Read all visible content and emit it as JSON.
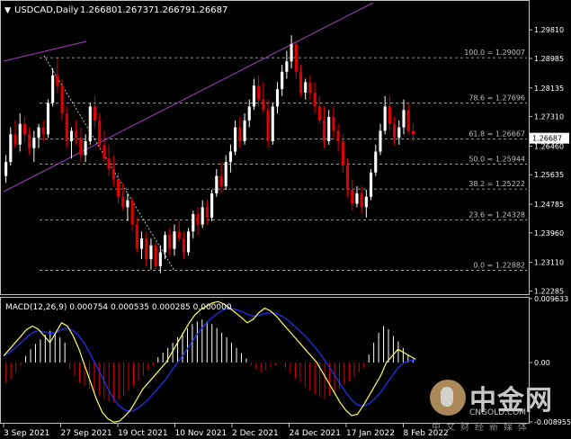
{
  "header": {
    "symbol": "USDCAD,Daily",
    "open": "1.26680",
    "high": "1.26737",
    "low": "1.26679",
    "close": "1.26687"
  },
  "price_axis": {
    "ticks": [
      "1.29810",
      "1.28985",
      "1.28135",
      "1.27310",
      "1.26460",
      "1.25635",
      "1.24785",
      "1.23960",
      "1.23110",
      "1.22285"
    ],
    "current_price": "1.26687"
  },
  "fibonacci_levels": [
    {
      "label": "100.0 = 1.29007",
      "value": 1.29007
    },
    {
      "label": "78.6 = 1.27696",
      "value": 1.27696
    },
    {
      "label": "61.8 = 1.26667",
      "value": 1.26667
    },
    {
      "label": "50.0 = 1.25944",
      "value": 1.25944
    },
    {
      "label": "38.2 = 1.25222",
      "value": 1.25222
    },
    {
      "label": "23.6 = 1.24328",
      "value": 1.24328
    },
    {
      "label": "0.0 = 1.22882",
      "value": 1.22882
    }
  ],
  "macd": {
    "label": "MACD(12,26,9) 0.000754 0.000535 0.000285 0.000000",
    "ticks": [
      "0.009633",
      "0.00",
      "-0.008955"
    ]
  },
  "time_axis": [
    "3 Sep 2021",
    "27 Sep 2021",
    "19 Oct 2021",
    "10 Nov 2021",
    "2 Dec 2021",
    "24 Dec 2021",
    "17 Jan 2022",
    "8 Feb 2022"
  ],
  "colors": {
    "background": "#000000",
    "bull_candle": "#ffffff",
    "bear_candle": "#e00000",
    "grid": "#c0c0c0",
    "trendline": "#a040c0",
    "macd_line": "#ffff66",
    "signal_line": "#2233ff",
    "price_marker_bg": "#ffffff"
  },
  "watermark": {
    "brand": "中金网",
    "url": "CNGOLD.COM",
    "slogan": "中文财经新媒体",
    "icon": "cngold-logo-icon"
  },
  "chart_data": {
    "type": "candlestick",
    "title": "USDCAD,Daily",
    "ylim": [
      1.2222,
      1.3015
    ],
    "candles": [
      [
        1.256,
        1.262,
        1.254,
        1.26
      ],
      [
        1.26,
        1.27,
        1.259,
        1.268
      ],
      [
        1.268,
        1.272,
        1.264,
        1.265
      ],
      [
        1.265,
        1.274,
        1.263,
        1.271
      ],
      [
        1.271,
        1.273,
        1.266,
        1.268
      ],
      [
        1.268,
        1.27,
        1.262,
        1.264
      ],
      [
        1.264,
        1.269,
        1.26,
        1.267
      ],
      [
        1.267,
        1.271,
        1.264,
        1.27
      ],
      [
        1.27,
        1.272,
        1.266,
        1.268
      ],
      [
        1.268,
        1.278,
        1.267,
        1.277
      ],
      [
        1.277,
        1.287,
        1.276,
        1.285
      ],
      [
        1.285,
        1.29,
        1.28,
        1.282
      ],
      [
        1.282,
        1.284,
        1.272,
        1.274
      ],
      [
        1.274,
        1.276,
        1.264,
        1.266
      ],
      [
        1.266,
        1.27,
        1.261,
        1.269
      ],
      [
        1.269,
        1.272,
        1.265,
        1.267
      ],
      [
        1.267,
        1.27,
        1.26,
        1.262
      ],
      [
        1.262,
        1.268,
        1.26,
        1.266
      ],
      [
        1.266,
        1.277,
        1.265,
        1.276
      ],
      [
        1.276,
        1.279,
        1.27,
        1.272
      ],
      [
        1.272,
        1.274,
        1.264,
        1.265
      ],
      [
        1.265,
        1.269,
        1.26,
        1.261
      ],
      [
        1.261,
        1.265,
        1.256,
        1.258
      ],
      [
        1.258,
        1.262,
        1.253,
        1.255
      ],
      [
        1.255,
        1.257,
        1.248,
        1.25
      ],
      [
        1.25,
        1.254,
        1.246,
        1.247
      ],
      [
        1.247,
        1.251,
        1.243,
        1.249
      ],
      [
        1.249,
        1.25,
        1.24,
        1.242
      ],
      [
        1.242,
        1.244,
        1.234,
        1.235
      ],
      [
        1.235,
        1.24,
        1.232,
        1.238
      ],
      [
        1.238,
        1.24,
        1.23,
        1.232
      ],
      [
        1.232,
        1.238,
        1.229,
        1.236
      ],
      [
        1.236,
        1.237,
        1.229,
        1.23
      ],
      [
        1.23,
        1.236,
        1.228,
        1.234
      ],
      [
        1.234,
        1.24,
        1.232,
        1.239
      ],
      [
        1.239,
        1.241,
        1.233,
        1.235
      ],
      [
        1.235,
        1.242,
        1.233,
        1.24
      ],
      [
        1.24,
        1.243,
        1.237,
        1.238
      ],
      [
        1.238,
        1.24,
        1.232,
        1.234
      ],
      [
        1.234,
        1.241,
        1.233,
        1.24
      ],
      [
        1.24,
        1.246,
        1.238,
        1.245
      ],
      [
        1.245,
        1.247,
        1.239,
        1.242
      ],
      [
        1.242,
        1.249,
        1.241,
        1.247
      ],
      [
        1.247,
        1.249,
        1.242,
        1.244
      ],
      [
        1.244,
        1.252,
        1.243,
        1.251
      ],
      [
        1.251,
        1.258,
        1.25,
        1.256
      ],
      [
        1.256,
        1.26,
        1.251,
        1.253
      ],
      [
        1.253,
        1.262,
        1.252,
        1.26
      ],
      [
        1.26,
        1.265,
        1.257,
        1.263
      ],
      [
        1.263,
        1.272,
        1.262,
        1.27
      ],
      [
        1.27,
        1.273,
        1.264,
        1.266
      ],
      [
        1.266,
        1.274,
        1.265,
        1.272
      ],
      [
        1.272,
        1.278,
        1.27,
        1.276
      ],
      [
        1.276,
        1.284,
        1.275,
        1.282
      ],
      [
        1.282,
        1.285,
        1.276,
        1.278
      ],
      [
        1.278,
        1.283,
        1.274,
        1.275
      ],
      [
        1.275,
        1.278,
        1.264,
        1.266
      ],
      [
        1.266,
        1.277,
        1.265,
        1.276
      ],
      [
        1.276,
        1.283,
        1.274,
        1.281
      ],
      [
        1.281,
        1.288,
        1.279,
        1.286
      ],
      [
        1.286,
        1.292,
        1.284,
        1.289
      ],
      [
        1.289,
        1.2965,
        1.287,
        1.294
      ],
      [
        1.294,
        1.295,
        1.284,
        1.286
      ],
      [
        1.286,
        1.288,
        1.279,
        1.28
      ],
      [
        1.28,
        1.284,
        1.278,
        1.283
      ],
      [
        1.283,
        1.285,
        1.278,
        1.28
      ],
      [
        1.28,
        1.283,
        1.274,
        1.276
      ],
      [
        1.276,
        1.279,
        1.271,
        1.272
      ],
      [
        1.272,
        1.276,
        1.264,
        1.266
      ],
      [
        1.266,
        1.275,
        1.265,
        1.273
      ],
      [
        1.273,
        1.276,
        1.267,
        1.269
      ],
      [
        1.269,
        1.271,
        1.263,
        1.266
      ],
      [
        1.266,
        1.268,
        1.257,
        1.259
      ],
      [
        1.259,
        1.261,
        1.25,
        1.252
      ],
      [
        1.252,
        1.255,
        1.246,
        1.248
      ],
      [
        1.248,
        1.253,
        1.247,
        1.251
      ],
      [
        1.251,
        1.253,
        1.245,
        1.247
      ],
      [
        1.247,
        1.252,
        1.244,
        1.25
      ],
      [
        1.25,
        1.258,
        1.249,
        1.257
      ],
      [
        1.257,
        1.265,
        1.256,
        1.263
      ],
      [
        1.263,
        1.271,
        1.262,
        1.269
      ],
      [
        1.269,
        1.279,
        1.268,
        1.276
      ],
      [
        1.276,
        1.279,
        1.269,
        1.271
      ],
      [
        1.271,
        1.273,
        1.265,
        1.267
      ],
      [
        1.267,
        1.272,
        1.265,
        1.27
      ],
      [
        1.27,
        1.278,
        1.268,
        1.275
      ],
      [
        1.275,
        1.277,
        1.268,
        1.269
      ],
      [
        1.269,
        1.271,
        1.266,
        1.268
      ]
    ],
    "macd_histogram": [
      -0.003,
      -0.0025,
      -0.0015,
      -0.0005,
      0.001,
      0.002,
      0.0028,
      0.0035,
      0.0042,
      0.0048,
      0.0045,
      0.0038,
      0.003,
      -0.001,
      -0.002,
      -0.003,
      -0.0035,
      -0.004,
      -0.0045,
      -0.005,
      -0.0055,
      -0.0058,
      -0.006,
      -0.0056,
      -0.005,
      -0.0042,
      -0.0035,
      -0.0028,
      -0.002,
      -0.0012,
      -0.0005,
      0.0008,
      0.0015,
      0.0022,
      0.003,
      0.0038,
      0.0045,
      0.0052,
      0.0058,
      0.0062,
      0.0065,
      0.0062,
      0.0058,
      0.0052,
      0.0045,
      0.0038,
      0.003,
      0.0022,
      0.0014,
      0.0006,
      -0.0004,
      -0.001,
      -0.0015,
      -0.0012,
      -0.0008,
      -0.0004,
      0.0,
      -0.0008,
      -0.0016,
      -0.0024,
      -0.003,
      -0.0036,
      -0.0042,
      -0.0048,
      -0.0052,
      -0.0055,
      -0.005,
      -0.0045,
      -0.004,
      -0.0034,
      -0.0028,
      -0.0022,
      -0.0015,
      -0.0008,
      0.0012,
      0.003,
      0.0045,
      0.0055,
      0.005,
      0.004,
      0.0032,
      0.0022,
      0.0012,
      0.0005
    ],
    "macd_line": [
      0.001,
      0.002,
      0.003,
      0.004,
      0.005,
      0.0055,
      0.005,
      0.004,
      0.003,
      0.0045,
      0.006,
      0.0055,
      0.004,
      0.002,
      -0.0005,
      -0.003,
      -0.0055,
      -0.0075,
      -0.0085,
      -0.009,
      -0.0088,
      -0.008,
      -0.007,
      -0.0055,
      -0.004,
      -0.003,
      -0.002,
      -0.001,
      0.0,
      0.0015,
      0.003,
      0.0045,
      0.006,
      0.0072,
      0.008,
      0.0085,
      0.009,
      0.0092,
      0.0088,
      0.0082,
      0.0075,
      0.0068,
      0.006,
      0.0065,
      0.0075,
      0.0082,
      0.0078,
      0.007,
      0.006,
      0.005,
      0.004,
      0.003,
      0.002,
      0.001,
      0.0,
      -0.0015,
      -0.003,
      -0.0045,
      -0.006,
      -0.0072,
      -0.008,
      -0.0078,
      -0.0065,
      -0.005,
      -0.0035,
      -0.002,
      0.0,
      0.001,
      0.002,
      0.0015,
      0.001,
      0.0005
    ],
    "signal_line": [
      0.001,
      0.0015,
      0.0022,
      0.003,
      0.0038,
      0.0045,
      0.0048,
      0.0046,
      0.0044,
      0.0045,
      0.005,
      0.0052,
      0.0048,
      0.004,
      0.0028,
      0.0012,
      -0.0005,
      -0.0022,
      -0.004,
      -0.0055,
      -0.0066,
      -0.0072,
      -0.0074,
      -0.007,
      -0.0063,
      -0.0055,
      -0.0045,
      -0.0035,
      -0.0025,
      -0.0012,
      0.0,
      0.0012,
      0.0025,
      0.0038,
      0.005,
      0.006,
      0.0068,
      0.0075,
      0.008,
      0.0082,
      0.008,
      0.0077,
      0.0073,
      0.007,
      0.0071,
      0.0074,
      0.0075,
      0.0074,
      0.007,
      0.0064,
      0.0056,
      0.0048,
      0.004,
      0.003,
      0.002,
      0.0008,
      -0.0005,
      -0.0018,
      -0.0032,
      -0.0045,
      -0.0056,
      -0.0064,
      -0.0066,
      -0.0062,
      -0.0055,
      -0.0045,
      -0.0032,
      -0.002,
      -0.0008,
      0.0,
      0.0003,
      0.0004
    ]
  }
}
